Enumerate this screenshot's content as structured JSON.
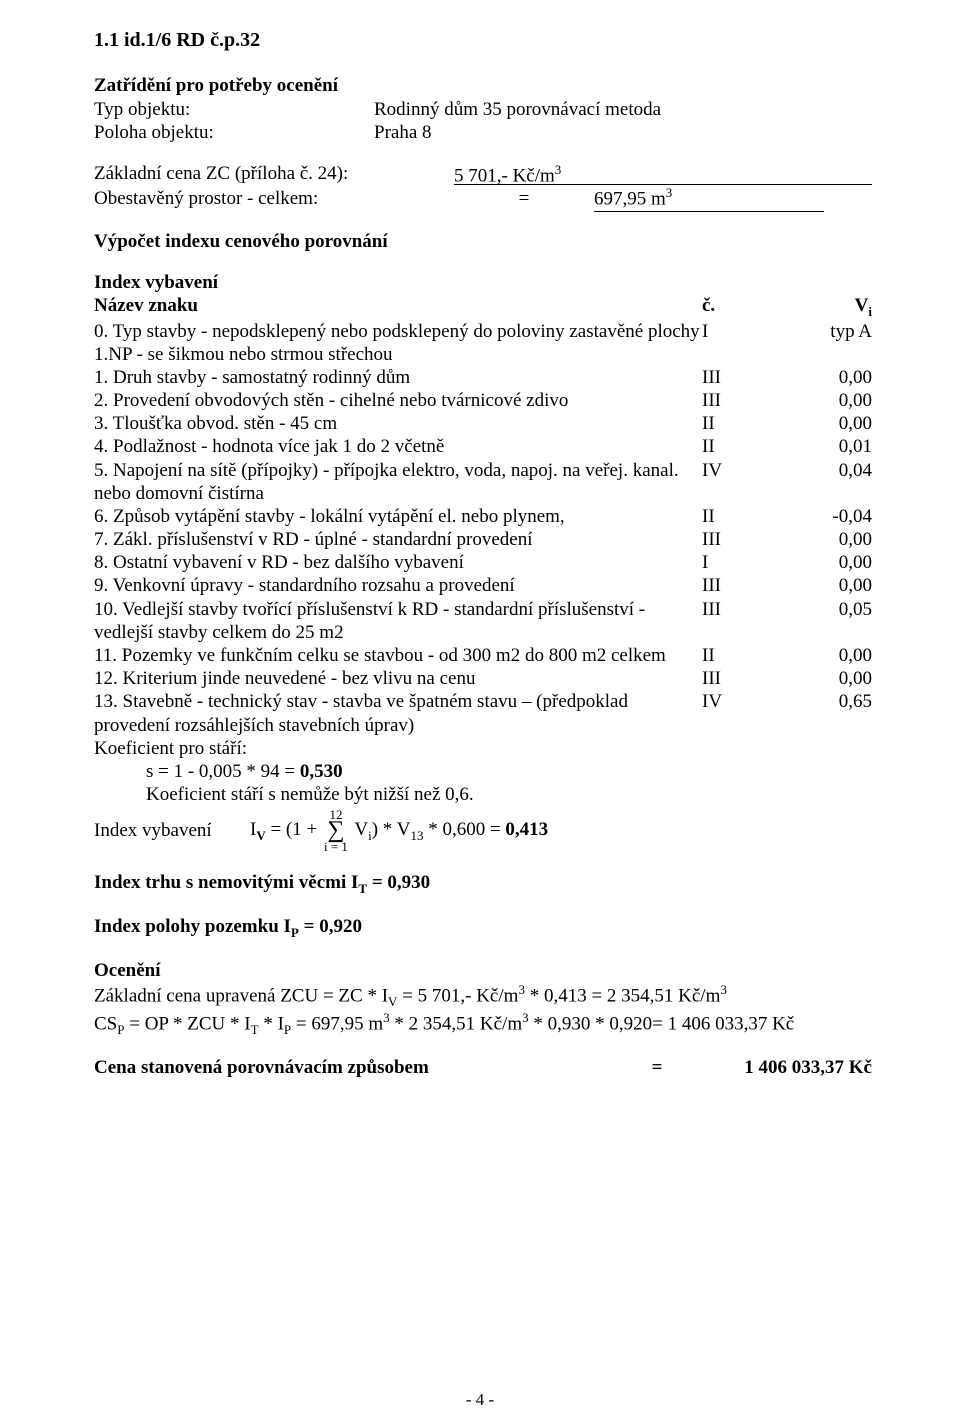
{
  "heading": "1.1 id.1/6 RD č.p.32",
  "classification_title": "Zatřídění pro potřeby ocenění",
  "obj_type_label": "Typ objektu:",
  "obj_type_value": "Rodinný dům 35 porovnávací metoda",
  "obj_loc_label": "Poloha objektu:",
  "obj_loc_value": "Praha  8",
  "base_price_label": "Základní cena ZC (příloha č. 24):",
  "base_price_value": "5 701,- Kč/m",
  "base_price_sup": "3",
  "built_space_label": "Obestavěný prostor - celkem:",
  "built_space_eq": "=",
  "built_space_value": "697,95 m",
  "built_space_sup": "3",
  "calc_title": "Výpočet indexu cenového porovnání",
  "index_title": "Index vybavení",
  "header_name": "Název znaku",
  "header_c": "č.",
  "header_v": "V",
  "header_v_sub": "i",
  "rows": [
    {
      "text": "0. Typ stavby - nepodsklepený nebo podsklepený do poloviny zastavěné plochy 1.NP - se šikmou nebo strmou střechou",
      "mid": "I",
      "right": "typ A"
    },
    {
      "text": "1. Druh stavby - samostatný rodinný dům",
      "mid": "III",
      "right": "0,00"
    },
    {
      "text": "2. Provedení obvodových stěn - cihelné nebo tvárnicové zdivo",
      "mid": "III",
      "right": "0,00"
    },
    {
      "text": "3. Tloušťka obvod. stěn - 45 cm",
      "mid": "II",
      "right": "0,00"
    },
    {
      "text": "4. Podlažnost - hodnota více jak 1 do 2 včetně",
      "mid": "II",
      "right": "0,01"
    },
    {
      "text": "5. Napojení na sítě (přípojky) - přípojka elektro, voda, napoj. na veřej. kanal. nebo domovní čistírna",
      "mid": "IV",
      "right": "0,04"
    },
    {
      "text": "6. Způsob vytápění stavby - lokální vytápění el. nebo plynem,",
      "mid": "II",
      "right": "-0,04"
    },
    {
      "text": "7. Zákl. příslušenství v RD - úplné - standardní provedení",
      "mid": "III",
      "right": "0,00"
    },
    {
      "text": "8. Ostatní vybavení v RD - bez dalšího vybavení",
      "mid": "I",
      "right": "0,00"
    },
    {
      "text": "9. Venkovní úpravy - standardního rozsahu a provedení",
      "mid": "III",
      "right": "0,00"
    },
    {
      "text": "10. Vedlejší stavby tvořící příslušenství k RD - standardní příslušenství  - vedlejší stavby celkem do 25 m2",
      "mid": "III",
      "right": "0,05"
    },
    {
      "text": "11. Pozemky ve funkčním celku se stavbou - od 300 m2 do 800 m2 celkem",
      "mid": "II",
      "right": "0,00"
    },
    {
      "text": "12. Kriterium jinde neuvedené - bez vlivu na cenu",
      "mid": "III",
      "right": "0,00"
    },
    {
      "text": "13. Stavebně - technický stav - stavba ve špatném stavu – (předpoklad provedení rozsáhlejších stavebních úprav)",
      "mid": "IV",
      "right": "0,65"
    }
  ],
  "koef_label": "Koeficient pro stáří:",
  "koef_s": "s = 1 - 0,005 * 94 = ",
  "koef_s_bold": "0,530",
  "koef_note": "Koeficient stáří s nemůže být nižší než 0,6.",
  "idx_label": "Index vybavení",
  "idx_formula_pre": "I",
  "idx_formula_pre_sub": "V",
  "idx_formula_mid1": " = (1 + ",
  "sigma_top": "12",
  "sigma_bot": "i = 1",
  "idx_formula_mid2": " V",
  "idx_formula_mid2_sub": "i",
  "idx_formula_mid3": ") * V",
  "idx_formula_mid3_sub": "13",
  "idx_formula_mid4": " * 0,600 = ",
  "idx_formula_bold": "0,413",
  "trh_line_pre": "Index trhu s nemovitými věcmi I",
  "trh_sub": "T",
  "trh_line_post": " = 0,930",
  "poloha_line_pre": "Index polohy pozemku I",
  "poloha_sub": "P",
  "poloha_line_post": " = 0,920",
  "oceneni_title": "Ocenění",
  "zcu_line": "Základní cena upravená ZCU = ZC * I",
  "zcu_sub1": "V",
  "zcu_mid1": " = 5 701,- Kč/m",
  "zcu_sup1": "3",
  "zcu_mid2": " * 0,413 = 2 354,51 Kč/m",
  "zcu_sup2": "3",
  "cs_line_pre": "CS",
  "cs_sub1": "P",
  "cs_mid1": " = OP * ZCU * I",
  "cs_sub2": "T",
  "cs_mid2": " * I",
  "cs_sub3": "P",
  "cs_mid3": " = 697,95 m",
  "cs_sup1": "3",
  "cs_mid4": " * 2 354,51 Kč/m",
  "cs_sup2": "3",
  "cs_mid5": " * 0,930 * 0,920= 1 406 033,37 Kč",
  "final_label": "Cena stanovená porovnávacím způsobem",
  "final_eq": "=",
  "final_value": "1 406 033,37 Kč",
  "page_footer": "- 4 -"
}
